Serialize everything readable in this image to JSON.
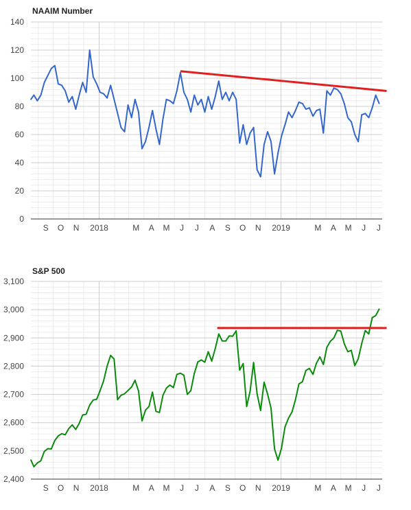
{
  "colors": {
    "naaim_line": "#3366cc",
    "sp500_line": "#0a8a0a",
    "trendline": "#e02020",
    "grid_minor": "#ebebeb",
    "grid_major": "#cccccc"
  },
  "chart_data": [
    {
      "type": "line",
      "title": "NAAIM Number",
      "xlabel": "",
      "ylabel": "",
      "ylim": [
        0,
        140
      ],
      "yticks": [
        "0",
        "20",
        "40",
        "60",
        "80",
        "100",
        "120",
        "140"
      ],
      "xticks": [
        "S",
        "O",
        "N",
        "2018",
        "M",
        "A",
        "M",
        "J",
        "J",
        "A",
        "S",
        "O",
        "N",
        "2019",
        "M",
        "A",
        "M",
        "J",
        "J"
      ],
      "xtick_dates": [
        "2017-09-01",
        "2017-10-01",
        "2017-11-01",
        "2018-01-01",
        "2018-03-01",
        "2018-04-01",
        "2018-05-01",
        "2018-06-01",
        "2018-07-01",
        "2018-08-01",
        "2018-09-01",
        "2018-10-01",
        "2018-11-01",
        "2019-01-01",
        "2019-03-01",
        "2019-04-01",
        "2019-05-01",
        "2019-06-01",
        "2019-07-01"
      ],
      "xlim": [
        "2017-08-17",
        "2019-07-23"
      ],
      "grid": true,
      "series": [
        {
          "values": [
            [
              "2017-08-17",
              85
            ],
            [
              "2017-08-23",
              88
            ],
            [
              "2017-08-30",
              84
            ],
            [
              "2017-09-06",
              88
            ],
            [
              "2017-09-13",
              97
            ],
            [
              "2017-09-20",
              102
            ],
            [
              "2017-09-27",
              107
            ],
            [
              "2017-10-04",
              109
            ],
            [
              "2017-10-11",
              96
            ],
            [
              "2017-10-18",
              95
            ],
            [
              "2017-10-25",
              91
            ],
            [
              "2017-11-01",
              83
            ],
            [
              "2017-11-08",
              87
            ],
            [
              "2017-11-15",
              78
            ],
            [
              "2017-11-22",
              88
            ],
            [
              "2017-11-29",
              97
            ],
            [
              "2017-12-06",
              90
            ],
            [
              "2017-12-13",
              120
            ],
            [
              "2017-12-20",
              101
            ],
            [
              "2017-12-27",
              96
            ],
            [
              "2018-01-03",
              90
            ],
            [
              "2018-01-10",
              89
            ],
            [
              "2018-01-17",
              86
            ],
            [
              "2018-01-24",
              95
            ],
            [
              "2018-01-31",
              85
            ],
            [
              "2018-02-07",
              75
            ],
            [
              "2018-02-14",
              65
            ],
            [
              "2018-02-21",
              62
            ],
            [
              "2018-02-28",
              81
            ],
            [
              "2018-03-07",
              72
            ],
            [
              "2018-03-14",
              85
            ],
            [
              "2018-03-21",
              76
            ],
            [
              "2018-03-28",
              50
            ],
            [
              "2018-04-04",
              55
            ],
            [
              "2018-04-11",
              65
            ],
            [
              "2018-04-18",
              77
            ],
            [
              "2018-04-25",
              64
            ],
            [
              "2018-05-02",
              53
            ],
            [
              "2018-05-09",
              71
            ],
            [
              "2018-05-16",
              85
            ],
            [
              "2018-05-23",
              84
            ],
            [
              "2018-05-30",
              82
            ],
            [
              "2018-06-06",
              91
            ],
            [
              "2018-06-13",
              104
            ],
            [
              "2018-06-20",
              90
            ],
            [
              "2018-06-27",
              85
            ],
            [
              "2018-07-04",
              76
            ],
            [
              "2018-07-11",
              88
            ],
            [
              "2018-07-18",
              81
            ],
            [
              "2018-07-25",
              85
            ],
            [
              "2018-08-01",
              76
            ],
            [
              "2018-08-08",
              87
            ],
            [
              "2018-08-15",
              78
            ],
            [
              "2018-08-22",
              87
            ],
            [
              "2018-08-29",
              98
            ],
            [
              "2018-09-05",
              85
            ],
            [
              "2018-09-12",
              90
            ],
            [
              "2018-09-19",
              84
            ],
            [
              "2018-09-26",
              90
            ],
            [
              "2018-10-03",
              85
            ],
            [
              "2018-10-10",
              54
            ],
            [
              "2018-10-17",
              67
            ],
            [
              "2018-10-24",
              53
            ],
            [
              "2018-10-31",
              61
            ],
            [
              "2018-11-07",
              65
            ],
            [
              "2018-11-14",
              35
            ],
            [
              "2018-11-21",
              30
            ],
            [
              "2018-11-28",
              53
            ],
            [
              "2018-12-05",
              62
            ],
            [
              "2018-12-12",
              55
            ],
            [
              "2018-12-19",
              32
            ],
            [
              "2018-12-26",
              47
            ],
            [
              "2019-01-02",
              59
            ],
            [
              "2019-01-09",
              67
            ],
            [
              "2019-01-16",
              76
            ],
            [
              "2019-01-23",
              72
            ],
            [
              "2019-01-30",
              77
            ],
            [
              "2019-02-06",
              83
            ],
            [
              "2019-02-13",
              82
            ],
            [
              "2019-02-20",
              78
            ],
            [
              "2019-02-27",
              79
            ],
            [
              "2019-03-06",
              73
            ],
            [
              "2019-03-13",
              77
            ],
            [
              "2019-03-20",
              78
            ],
            [
              "2019-03-27",
              61
            ],
            [
              "2019-04-03",
              91
            ],
            [
              "2019-04-10",
              88
            ],
            [
              "2019-04-17",
              93
            ],
            [
              "2019-04-24",
              92
            ],
            [
              "2019-05-01",
              89
            ],
            [
              "2019-05-08",
              82
            ],
            [
              "2019-05-15",
              72
            ],
            [
              "2019-05-22",
              69
            ],
            [
              "2019-05-29",
              60
            ],
            [
              "2019-06-05",
              55
            ],
            [
              "2019-06-12",
              74
            ],
            [
              "2019-06-19",
              75
            ],
            [
              "2019-06-26",
              72
            ],
            [
              "2019-07-03",
              79
            ],
            [
              "2019-07-10",
              88
            ],
            [
              "2019-07-17",
              82
            ]
          ]
        }
      ],
      "annotations": [
        {
          "type": "trendline",
          "from": [
            "2018-06-13",
            105
          ],
          "to": [
            "2019-08-01",
            91
          ]
        }
      ]
    },
    {
      "type": "line",
      "title": "S&P 500",
      "xlabel": "",
      "ylabel": "",
      "ylim": [
        2400,
        3100
      ],
      "yticks": [
        "2,400",
        "2,500",
        "2,600",
        "2,700",
        "2,800",
        "2,900",
        "3,000",
        "3,100"
      ],
      "xticks": [
        "S",
        "O",
        "N",
        "2018",
        "M",
        "A",
        "M",
        "J",
        "J",
        "A",
        "S",
        "O",
        "N",
        "2019",
        "M",
        "A",
        "M",
        "J",
        "J"
      ],
      "xtick_dates": [
        "2017-09-01",
        "2017-10-01",
        "2017-11-01",
        "2018-01-01",
        "2018-03-01",
        "2018-04-01",
        "2018-05-01",
        "2018-06-01",
        "2018-07-01",
        "2018-08-01",
        "2018-09-01",
        "2018-10-01",
        "2018-11-01",
        "2019-01-01",
        "2019-03-01",
        "2019-04-01",
        "2019-05-01",
        "2019-06-01",
        "2019-07-01"
      ],
      "xlim": [
        "2017-08-17",
        "2019-07-23"
      ],
      "grid": true,
      "series": [
        {
          "values": [
            [
              "2017-08-17",
              2468
            ],
            [
              "2017-08-23",
              2444
            ],
            [
              "2017-08-30",
              2457
            ],
            [
              "2017-09-06",
              2465
            ],
            [
              "2017-09-13",
              2498
            ],
            [
              "2017-09-20",
              2508
            ],
            [
              "2017-09-27",
              2507
            ],
            [
              "2017-10-04",
              2537
            ],
            [
              "2017-10-11",
              2553
            ],
            [
              "2017-10-18",
              2561
            ],
            [
              "2017-10-25",
              2557
            ],
            [
              "2017-11-01",
              2579
            ],
            [
              "2017-11-08",
              2592
            ],
            [
              "2017-11-15",
              2576
            ],
            [
              "2017-11-22",
              2597
            ],
            [
              "2017-11-29",
              2627
            ],
            [
              "2017-12-06",
              2630
            ],
            [
              "2017-12-13",
              2662
            ],
            [
              "2017-12-20",
              2680
            ],
            [
              "2017-12-27",
              2683
            ],
            [
              "2018-01-03",
              2713
            ],
            [
              "2018-01-10",
              2748
            ],
            [
              "2018-01-17",
              2800
            ],
            [
              "2018-01-24",
              2838
            ],
            [
              "2018-01-31",
              2825
            ],
            [
              "2018-02-07",
              2681
            ],
            [
              "2018-02-14",
              2697
            ],
            [
              "2018-02-21",
              2702
            ],
            [
              "2018-02-28",
              2714
            ],
            [
              "2018-03-07",
              2726
            ],
            [
              "2018-03-14",
              2750
            ],
            [
              "2018-03-21",
              2712
            ],
            [
              "2018-03-28",
              2606
            ],
            [
              "2018-04-04",
              2644
            ],
            [
              "2018-04-11",
              2657
            ],
            [
              "2018-04-18",
              2708
            ],
            [
              "2018-04-25",
              2640
            ],
            [
              "2018-05-02",
              2636
            ],
            [
              "2018-05-09",
              2697
            ],
            [
              "2018-05-16",
              2722
            ],
            [
              "2018-05-23",
              2733
            ],
            [
              "2018-05-30",
              2724
            ],
            [
              "2018-06-06",
              2771
            ],
            [
              "2018-06-13",
              2775
            ],
            [
              "2018-06-20",
              2768
            ],
            [
              "2018-06-27",
              2700
            ],
            [
              "2018-07-04",
              2713
            ],
            [
              "2018-07-11",
              2774
            ],
            [
              "2018-07-18",
              2815
            ],
            [
              "2018-07-25",
              2822
            ],
            [
              "2018-08-01",
              2814
            ],
            [
              "2018-08-08",
              2851
            ],
            [
              "2018-08-15",
              2818
            ],
            [
              "2018-08-22",
              2862
            ],
            [
              "2018-08-29",
              2914
            ],
            [
              "2018-09-05",
              2889
            ],
            [
              "2018-09-12",
              2889
            ],
            [
              "2018-09-19",
              2907
            ],
            [
              "2018-09-26",
              2906
            ],
            [
              "2018-10-03",
              2925
            ],
            [
              "2018-10-10",
              2786
            ],
            [
              "2018-10-17",
              2809
            ],
            [
              "2018-10-24",
              2657
            ],
            [
              "2018-10-31",
              2711
            ],
            [
              "2018-11-07",
              2813
            ],
            [
              "2018-11-14",
              2702
            ],
            [
              "2018-11-21",
              2643
            ],
            [
              "2018-11-28",
              2743
            ],
            [
              "2018-12-05",
              2701
            ],
            [
              "2018-12-12",
              2651
            ],
            [
              "2018-12-19",
              2507
            ],
            [
              "2018-12-26",
              2467
            ],
            [
              "2019-01-02",
              2510
            ],
            [
              "2019-01-09",
              2585
            ],
            [
              "2019-01-16",
              2616
            ],
            [
              "2019-01-23",
              2638
            ],
            [
              "2019-01-30",
              2681
            ],
            [
              "2019-02-06",
              2737
            ],
            [
              "2019-02-13",
              2745
            ],
            [
              "2019-02-20",
              2785
            ],
            [
              "2019-02-27",
              2792
            ],
            [
              "2019-03-06",
              2771
            ],
            [
              "2019-03-13",
              2810
            ],
            [
              "2019-03-20",
              2833
            ],
            [
              "2019-03-27",
              2806
            ],
            [
              "2019-04-03",
              2867
            ],
            [
              "2019-04-10",
              2888
            ],
            [
              "2019-04-17",
              2900
            ],
            [
              "2019-04-24",
              2927
            ],
            [
              "2019-05-01",
              2924
            ],
            [
              "2019-05-08",
              2879
            ],
            [
              "2019-05-15",
              2851
            ],
            [
              "2019-05-22",
              2856
            ],
            [
              "2019-05-29",
              2802
            ],
            [
              "2019-06-05",
              2826
            ],
            [
              "2019-06-12",
              2880
            ],
            [
              "2019-06-19",
              2926
            ],
            [
              "2019-06-26",
              2914
            ],
            [
              "2019-07-03",
              2972
            ],
            [
              "2019-07-10",
              2979
            ],
            [
              "2019-07-17",
              3002
            ]
          ]
        }
      ],
      "annotations": [
        {
          "type": "trendline",
          "from": [
            "2018-08-26",
            2935
          ],
          "to": [
            "2019-08-01",
            2935
          ]
        }
      ]
    }
  ]
}
